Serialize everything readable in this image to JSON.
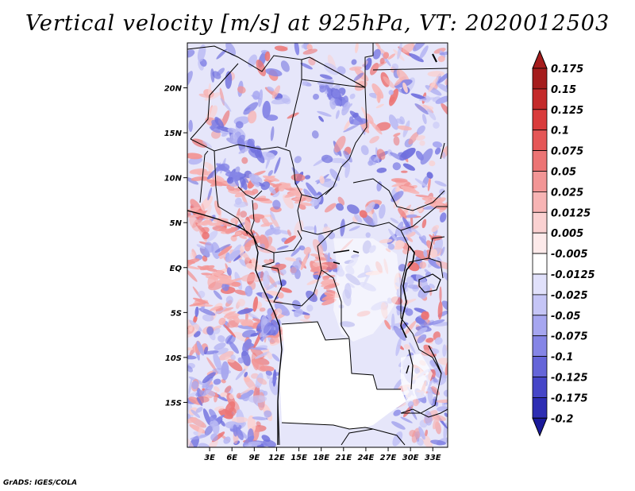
{
  "title": "Vertical velocity [m/s] at 925hPa, VT: 2020012503",
  "footer": "GrADS: IGES/COLA",
  "map": {
    "lon_range": [
      0,
      35
    ],
    "lat_range": [
      -20,
      25
    ],
    "lat_ticks": [
      {
        "value": 20,
        "label": "20N"
      },
      {
        "value": 15,
        "label": "15N"
      },
      {
        "value": 10,
        "label": "10N"
      },
      {
        "value": 5,
        "label": "5N"
      },
      {
        "value": 0,
        "label": "EQ"
      },
      {
        "value": -5,
        "label": "5S"
      },
      {
        "value": -10,
        "label": "10S"
      },
      {
        "value": -15,
        "label": "15S"
      }
    ],
    "lon_ticks": [
      {
        "value": 3,
        "label": "3E"
      },
      {
        "value": 6,
        "label": "6E"
      },
      {
        "value": 9,
        "label": "9E"
      },
      {
        "value": 12,
        "label": "12E"
      },
      {
        "value": 15,
        "label": "15E"
      },
      {
        "value": 18,
        "label": "18E"
      },
      {
        "value": 21,
        "label": "21E"
      },
      {
        "value": 24,
        "label": "24E"
      },
      {
        "value": 27,
        "label": "27E"
      },
      {
        "value": 30,
        "label": "30E"
      },
      {
        "value": 33,
        "label": "33E"
      }
    ]
  },
  "colorbar": {
    "labels": [
      "0.175",
      "0.15",
      "0.125",
      "0.1",
      "0.075",
      "0.05",
      "0.025",
      "0.0125",
      "0.005",
      "-0.005",
      "-0.0125",
      "-0.025",
      "-0.05",
      "-0.075",
      "-0.1",
      "-0.125",
      "-0.175",
      "-0.2"
    ],
    "colors": [
      "#a51d1d",
      "#c42a2a",
      "#d93b3b",
      "#e55656",
      "#ec7474",
      "#f29595",
      "#f7b4b4",
      "#fad1d1",
      "#fdeaea",
      "#ffffff",
      "#e1e1fb",
      "#c5c5f6",
      "#a6a6f0",
      "#8585e6",
      "#6565d9",
      "#4646c8",
      "#2d2db3",
      "#1a1a9a"
    ]
  }
}
